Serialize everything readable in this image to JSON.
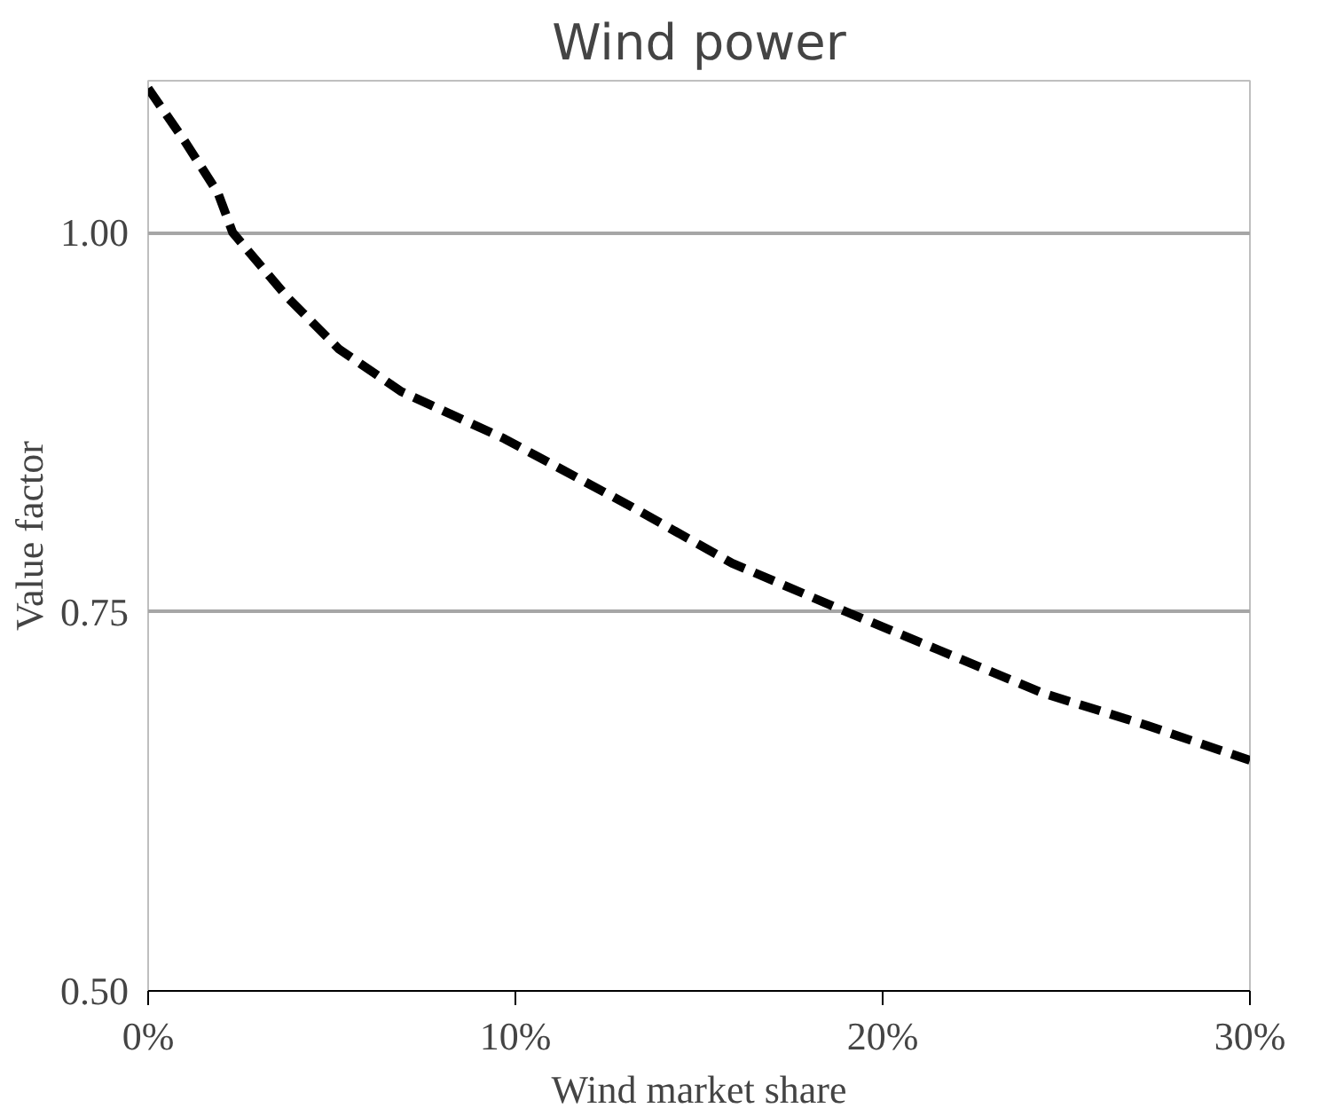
{
  "chart_data": {
    "type": "line",
    "title": "Wind power",
    "xlabel": "Wind market share",
    "ylabel": "Value factor",
    "x": [
      0,
      1,
      1.9,
      2.3,
      3.8,
      5.2,
      6.9,
      9.7,
      13.1,
      15.9,
      19.0,
      21.5,
      24.4,
      27.2,
      30
    ],
    "series": [
      {
        "color": "#000000",
        "values": [
          1.095,
          1.06,
          1.026,
          1.0,
          0.957,
          0.923,
          0.895,
          0.864,
          0.82,
          0.782,
          0.75,
          0.725,
          0.696,
          0.675,
          0.652
        ]
      }
    ],
    "xlim": [
      0,
      30
    ],
    "ylim": [
      0.5,
      1.1
    ],
    "xticks": [
      {
        "value": 0,
        "label": "0%"
      },
      {
        "value": 10,
        "label": "10%"
      },
      {
        "value": 20,
        "label": "20%"
      },
      {
        "value": 30,
        "label": "30%"
      }
    ],
    "yticks": [
      {
        "value": 0.5,
        "label": "0.50"
      },
      {
        "value": 0.75,
        "label": "0.75"
      },
      {
        "value": 1.0,
        "label": "1.00"
      }
    ],
    "grid": "y",
    "line_style": "dashed",
    "marker": "none"
  }
}
